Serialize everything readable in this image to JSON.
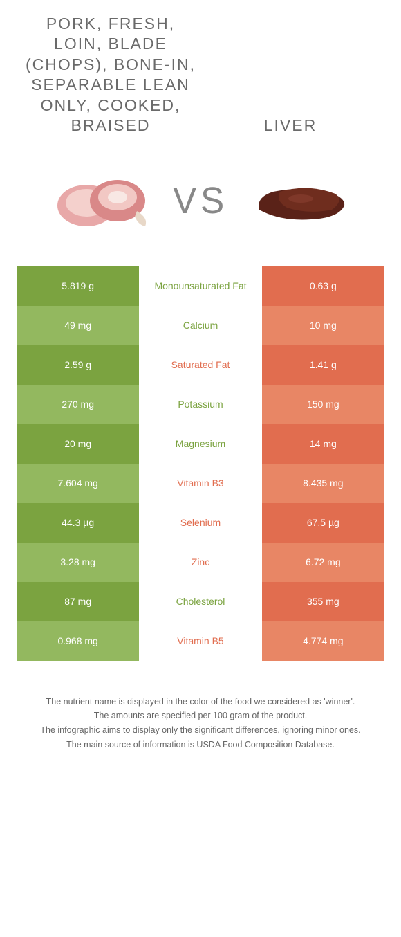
{
  "colors": {
    "green_dark": "#7ba340",
    "green_light": "#93b85f",
    "orange_dark": "#e16d4f",
    "orange_light": "#e88665",
    "green_text": "#7ba340",
    "orange_text": "#e16d4f"
  },
  "food_left": {
    "title": "PORK, FRESH, LOIN, BLADE (CHOPS), BONE-IN, SEPARABLE LEAN ONLY, COOKED, BRAISED"
  },
  "food_right": {
    "title": "LIVER"
  },
  "vs_label": "VS",
  "rows": [
    {
      "left": "5.819 g",
      "label": "Monounsaturated Fat",
      "right": "0.63 g",
      "winner": "left"
    },
    {
      "left": "49 mg",
      "label": "Calcium",
      "right": "10 mg",
      "winner": "left"
    },
    {
      "left": "2.59 g",
      "label": "Saturated Fat",
      "right": "1.41 g",
      "winner": "right"
    },
    {
      "left": "270 mg",
      "label": "Potassium",
      "right": "150 mg",
      "winner": "left"
    },
    {
      "left": "20 mg",
      "label": "Magnesium",
      "right": "14 mg",
      "winner": "left"
    },
    {
      "left": "7.604 mg",
      "label": "Vitamin B3",
      "right": "8.435 mg",
      "winner": "right"
    },
    {
      "left": "44.3 µg",
      "label": "Selenium",
      "right": "67.5 µg",
      "winner": "right"
    },
    {
      "left": "3.28 mg",
      "label": "Zinc",
      "right": "6.72 mg",
      "winner": "right"
    },
    {
      "left": "87 mg",
      "label": "Cholesterol",
      "right": "355 mg",
      "winner": "left"
    },
    {
      "left": "0.968 mg",
      "label": "Vitamin B5",
      "right": "4.774 mg",
      "winner": "right"
    }
  ],
  "footnotes": [
    "The nutrient name is displayed in the color of the food we considered as 'winner'.",
    "The amounts are specified per 100 gram of the product.",
    "The infographic aims to display only the significant differences, ignoring minor ones.",
    "The main source of information is USDA Food Composition Database."
  ]
}
